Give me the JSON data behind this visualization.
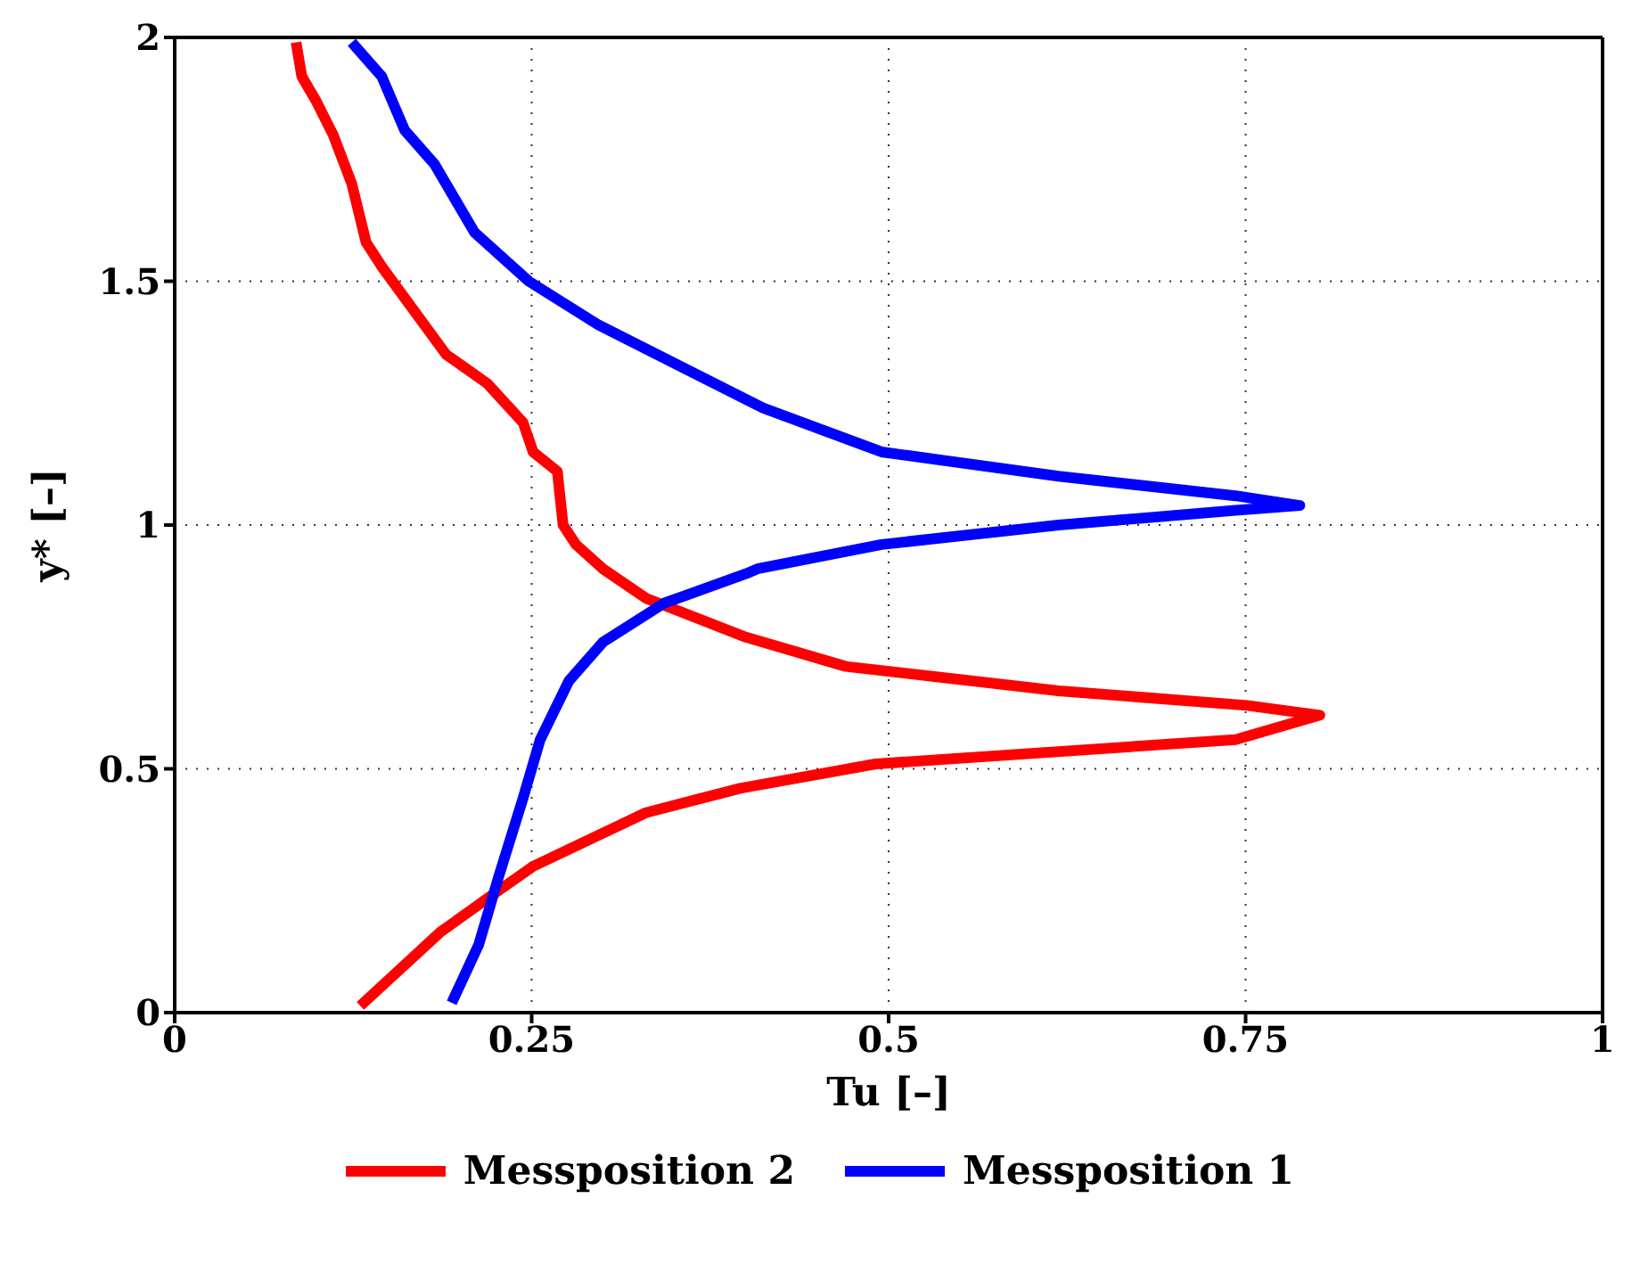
{
  "chart_data": {
    "type": "line",
    "xlabel": "Tu [–]",
    "ylabel": "y* [–]",
    "xlim": [
      0,
      1
    ],
    "ylim": [
      0,
      2
    ],
    "xticks": [
      0,
      0.25,
      0.5,
      0.75,
      1
    ],
    "yticks": [
      0,
      0.5,
      1,
      1.5,
      2
    ],
    "grid": true,
    "legend": "bottom",
    "line_style": "solid",
    "marker": "none",
    "series": [
      {
        "name": "Messposition 2",
        "color": "#ff0000",
        "x": [
          0.13,
          0.186,
          0.217,
          0.251,
          0.33,
          0.396,
          0.491,
          0.743,
          0.802,
          0.751,
          0.619,
          0.47,
          0.4,
          0.33,
          0.3,
          0.281,
          0.272,
          0.268,
          0.251,
          0.244,
          0.219,
          0.19,
          0.145,
          0.134,
          0.124,
          0.111,
          0.099,
          0.089,
          0.085
        ],
        "values": [
          0.014,
          0.165,
          0.23,
          0.3,
          0.41,
          0.46,
          0.51,
          0.56,
          0.61,
          0.63,
          0.66,
          0.71,
          0.77,
          0.85,
          0.91,
          0.96,
          1.0,
          1.11,
          1.15,
          1.21,
          1.29,
          1.35,
          1.53,
          1.58,
          1.7,
          1.8,
          1.87,
          1.92,
          1.99
        ]
      },
      {
        "name": "Messposition 1",
        "color": "#0000ff",
        "x": [
          0.194,
          0.213,
          0.227,
          0.244,
          0.256,
          0.276,
          0.3,
          0.343,
          0.4,
          0.408,
          0.495,
          0.619,
          0.743,
          0.788,
          0.743,
          0.619,
          0.495,
          0.412,
          0.297,
          0.248,
          0.21,
          0.182,
          0.161,
          0.145,
          0.124
        ],
        "values": [
          0.02,
          0.14,
          0.28,
          0.44,
          0.56,
          0.68,
          0.76,
          0.84,
          0.9,
          0.91,
          0.96,
          1.0,
          1.03,
          1.04,
          1.06,
          1.1,
          1.15,
          1.24,
          1.41,
          1.5,
          1.6,
          1.74,
          1.81,
          1.92,
          1.99
        ]
      }
    ]
  }
}
